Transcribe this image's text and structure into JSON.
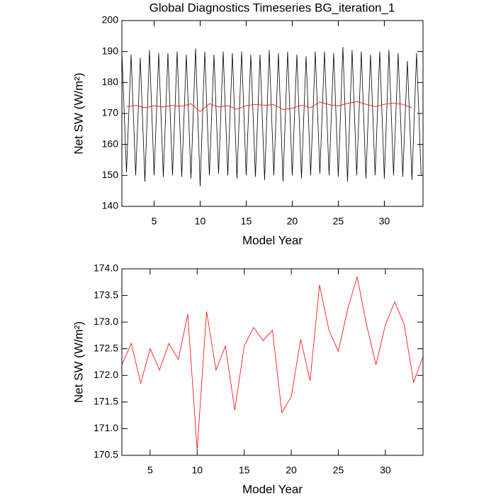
{
  "chart_data": [
    {
      "type": "line",
      "title": "Global Diagnostics Timeseries BG_iteration_1",
      "xlabel": "Model Year",
      "ylabel": "Net SW (W/m²)",
      "xlim": [
        1.5,
        34.2
      ],
      "ylim": [
        140,
        200
      ],
      "xticks": [
        5,
        10,
        15,
        20,
        25,
        30
      ],
      "yticks": [
        140,
        150,
        160,
        170,
        180,
        190,
        200
      ],
      "series": [
        {
          "color": "#000000",
          "x": [
            1.5,
            2,
            2.5,
            3,
            3.5,
            4,
            4.5,
            5,
            5.5,
            6,
            6.5,
            7,
            7.5,
            8,
            8.5,
            9,
            9.5,
            10,
            10.5,
            11,
            11.5,
            12,
            12.5,
            13,
            13.5,
            14,
            14.5,
            15,
            15.5,
            16,
            16.5,
            17,
            17.5,
            18,
            18.5,
            19,
            19.5,
            20,
            20.5,
            21,
            21.5,
            22,
            22.5,
            23,
            23.5,
            24,
            24.5,
            25,
            25.5,
            26,
            26.5,
            27,
            27.5,
            28,
            28.5,
            29,
            29.5,
            30,
            30.5,
            31,
            31.5,
            32,
            32.5,
            33,
            33.5,
            34
          ],
          "values": [
            190,
            151,
            189,
            150,
            188,
            148,
            190.5,
            150,
            189.5,
            149.5,
            189.5,
            150,
            190,
            149.5,
            189,
            149,
            191,
            146.5,
            190,
            150,
            189,
            150.5,
            190,
            150,
            189.5,
            149,
            190,
            150,
            189,
            149.5,
            189,
            148.5,
            190.5,
            150,
            189.5,
            148,
            190,
            150,
            189,
            149,
            188.5,
            150,
            190,
            150.5,
            190,
            150,
            189.5,
            149.5,
            191.5,
            148,
            190.5,
            150,
            190,
            149,
            189,
            150,
            190,
            149,
            190.5,
            150,
            189.5,
            149.5,
            187,
            148.5,
            189.5,
            150
          ]
        },
        {
          "color": "#ff0000",
          "x": [
            2,
            3,
            4,
            5,
            6,
            7,
            8,
            9,
            10,
            11,
            12,
            13,
            14,
            15,
            16,
            17,
            18,
            19,
            20,
            21,
            22,
            23,
            24,
            25,
            26,
            27,
            28,
            29,
            30,
            31,
            32,
            33
          ],
          "values": [
            172.2,
            172.6,
            171.85,
            172.5,
            172.1,
            172.6,
            172.3,
            173.15,
            170.6,
            173.2,
            172.1,
            172.55,
            171.35,
            172.55,
            172.9,
            172.65,
            172.85,
            171.3,
            171.6,
            172.68,
            171.9,
            173.7,
            172.85,
            172.45,
            173.25,
            173.85,
            172.95,
            172.2,
            172.95,
            173.38,
            172.95,
            171.87
          ]
        }
      ]
    },
    {
      "type": "line",
      "xlabel": "Model Year",
      "ylabel": "Net SW (W/m²)",
      "xlim": [
        2,
        34
      ],
      "ylim": [
        170.5,
        174
      ],
      "xticks": [
        5,
        10,
        15,
        20,
        25,
        30
      ],
      "yticks": [
        170.5,
        {
          "value": 171,
          "label": "171.0"
        },
        171.5,
        {
          "value": 172,
          "label": "172.0"
        },
        172.5,
        {
          "value": 173,
          "label": "173.0"
        },
        173.5,
        {
          "value": 174,
          "label": "174.0"
        }
      ],
      "series": [
        {
          "color": "#ff0000",
          "x": [
            2,
            3,
            4,
            5,
            6,
            7,
            8,
            9,
            10,
            11,
            12,
            13,
            14,
            15,
            16,
            17,
            18,
            19,
            20,
            21,
            22,
            23,
            24,
            25,
            26,
            27,
            28,
            29,
            30,
            31,
            32,
            33,
            34
          ],
          "values": [
            172.2,
            172.6,
            171.85,
            172.5,
            172.1,
            172.6,
            172.3,
            173.15,
            170.6,
            173.2,
            172.1,
            172.55,
            171.35,
            172.55,
            172.9,
            172.65,
            172.85,
            171.3,
            171.6,
            172.68,
            171.9,
            173.7,
            172.85,
            172.45,
            173.25,
            173.85,
            172.95,
            172.2,
            172.95,
            173.38,
            172.95,
            171.87,
            172.35
          ]
        }
      ]
    }
  ]
}
